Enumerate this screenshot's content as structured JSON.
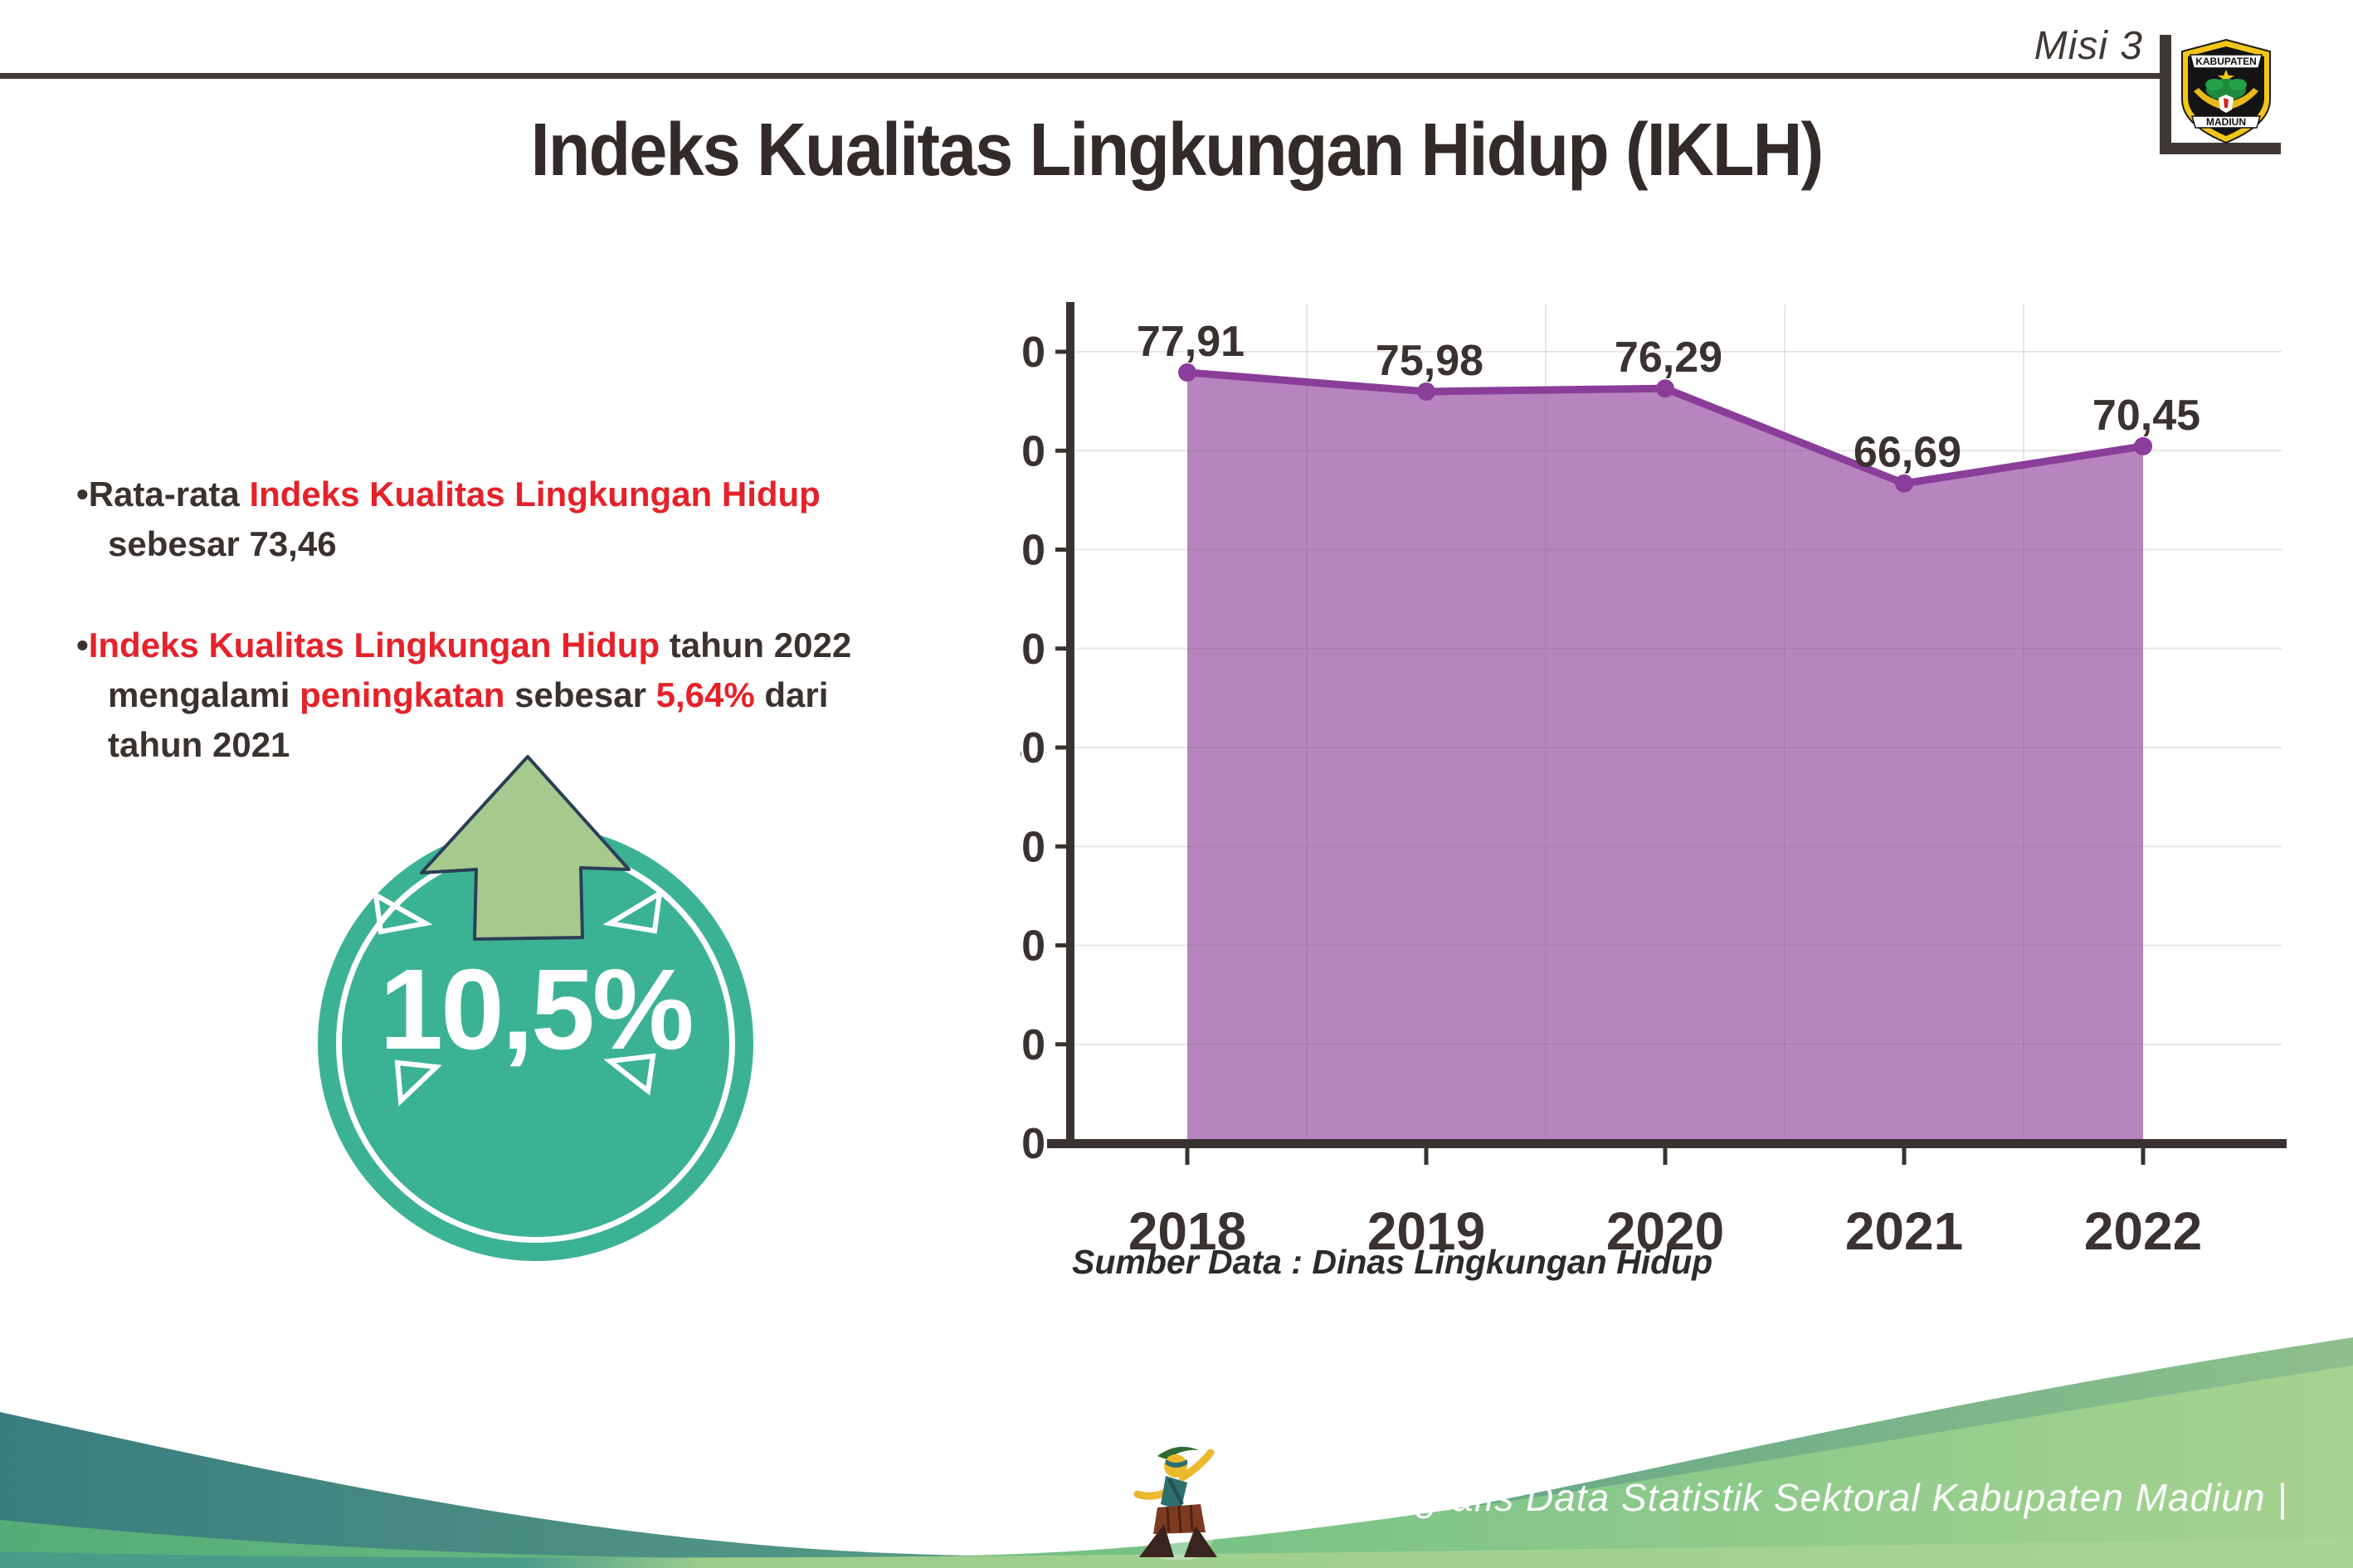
{
  "header": {
    "misi_label": "Misi 3",
    "title": "Indeks Kualitas Lingkungan Hidup (IKLH)",
    "logo": {
      "top_text": "KABUPATEN",
      "bottom_text": "MADIUN"
    }
  },
  "bullets": [
    {
      "segments": [
        {
          "t": "•Rata-rata ",
          "c": "dark"
        },
        {
          "t": "Indeks Kualitas Lingkungan Hidup",
          "c": "red"
        },
        {
          "t": " sebesar 73,46",
          "c": "dark"
        }
      ]
    },
    {
      "segments": [
        {
          "t": "•",
          "c": "dark"
        },
        {
          "t": "Indeks Kualitas Lingkungan Hidup",
          "c": "red"
        },
        {
          "t": " tahun 2022 mengalami ",
          "c": "dark"
        },
        {
          "t": "peningkatan",
          "c": "red"
        },
        {
          "t": " sebesar ",
          "c": "dark"
        },
        {
          "t": "5,64%",
          "c": "red"
        },
        {
          "t": " dari tahun 2021",
          "c": "dark"
        }
      ]
    }
  ],
  "badge": {
    "value": "10,5%",
    "circle_color": "#3cb295",
    "arrow_color": "#a6ca8d",
    "arrow_outline": "#2c3e58"
  },
  "chart_data": {
    "type": "area",
    "title": "",
    "categories": [
      "2018",
      "2019",
      "2020",
      "2021",
      "2022"
    ],
    "values": [
      77.91,
      75.98,
      76.29,
      66.69,
      70.45
    ],
    "point_labels": [
      "77,91",
      "75,98",
      "76,29",
      "66,69",
      "70,45"
    ],
    "xlabel": "",
    "ylabel": "",
    "ylim": [
      0,
      80
    ],
    "ytick_step": 10,
    "grid": true,
    "legend": "none",
    "fill_color": "#b884c0",
    "line_color": "#8a3d99",
    "axis_color": "#3a3230",
    "label_color": "#3a3230"
  },
  "source_note": "Sumber Data : Dinas Lingkungan Hidup",
  "footer": {
    "credit_text": "Media Infografis Data Statistik Sektoral Kabupaten Madiun |"
  },
  "colors": {
    "dark_text": "#3a322f",
    "red_text": "#e62129",
    "rule": "#3f3835",
    "teal_wave_start": "#397d80",
    "teal_wave_end": "#8ec08d",
    "green_wave_start": "#54ad78",
    "green_wave_end": "#a6d38f"
  }
}
